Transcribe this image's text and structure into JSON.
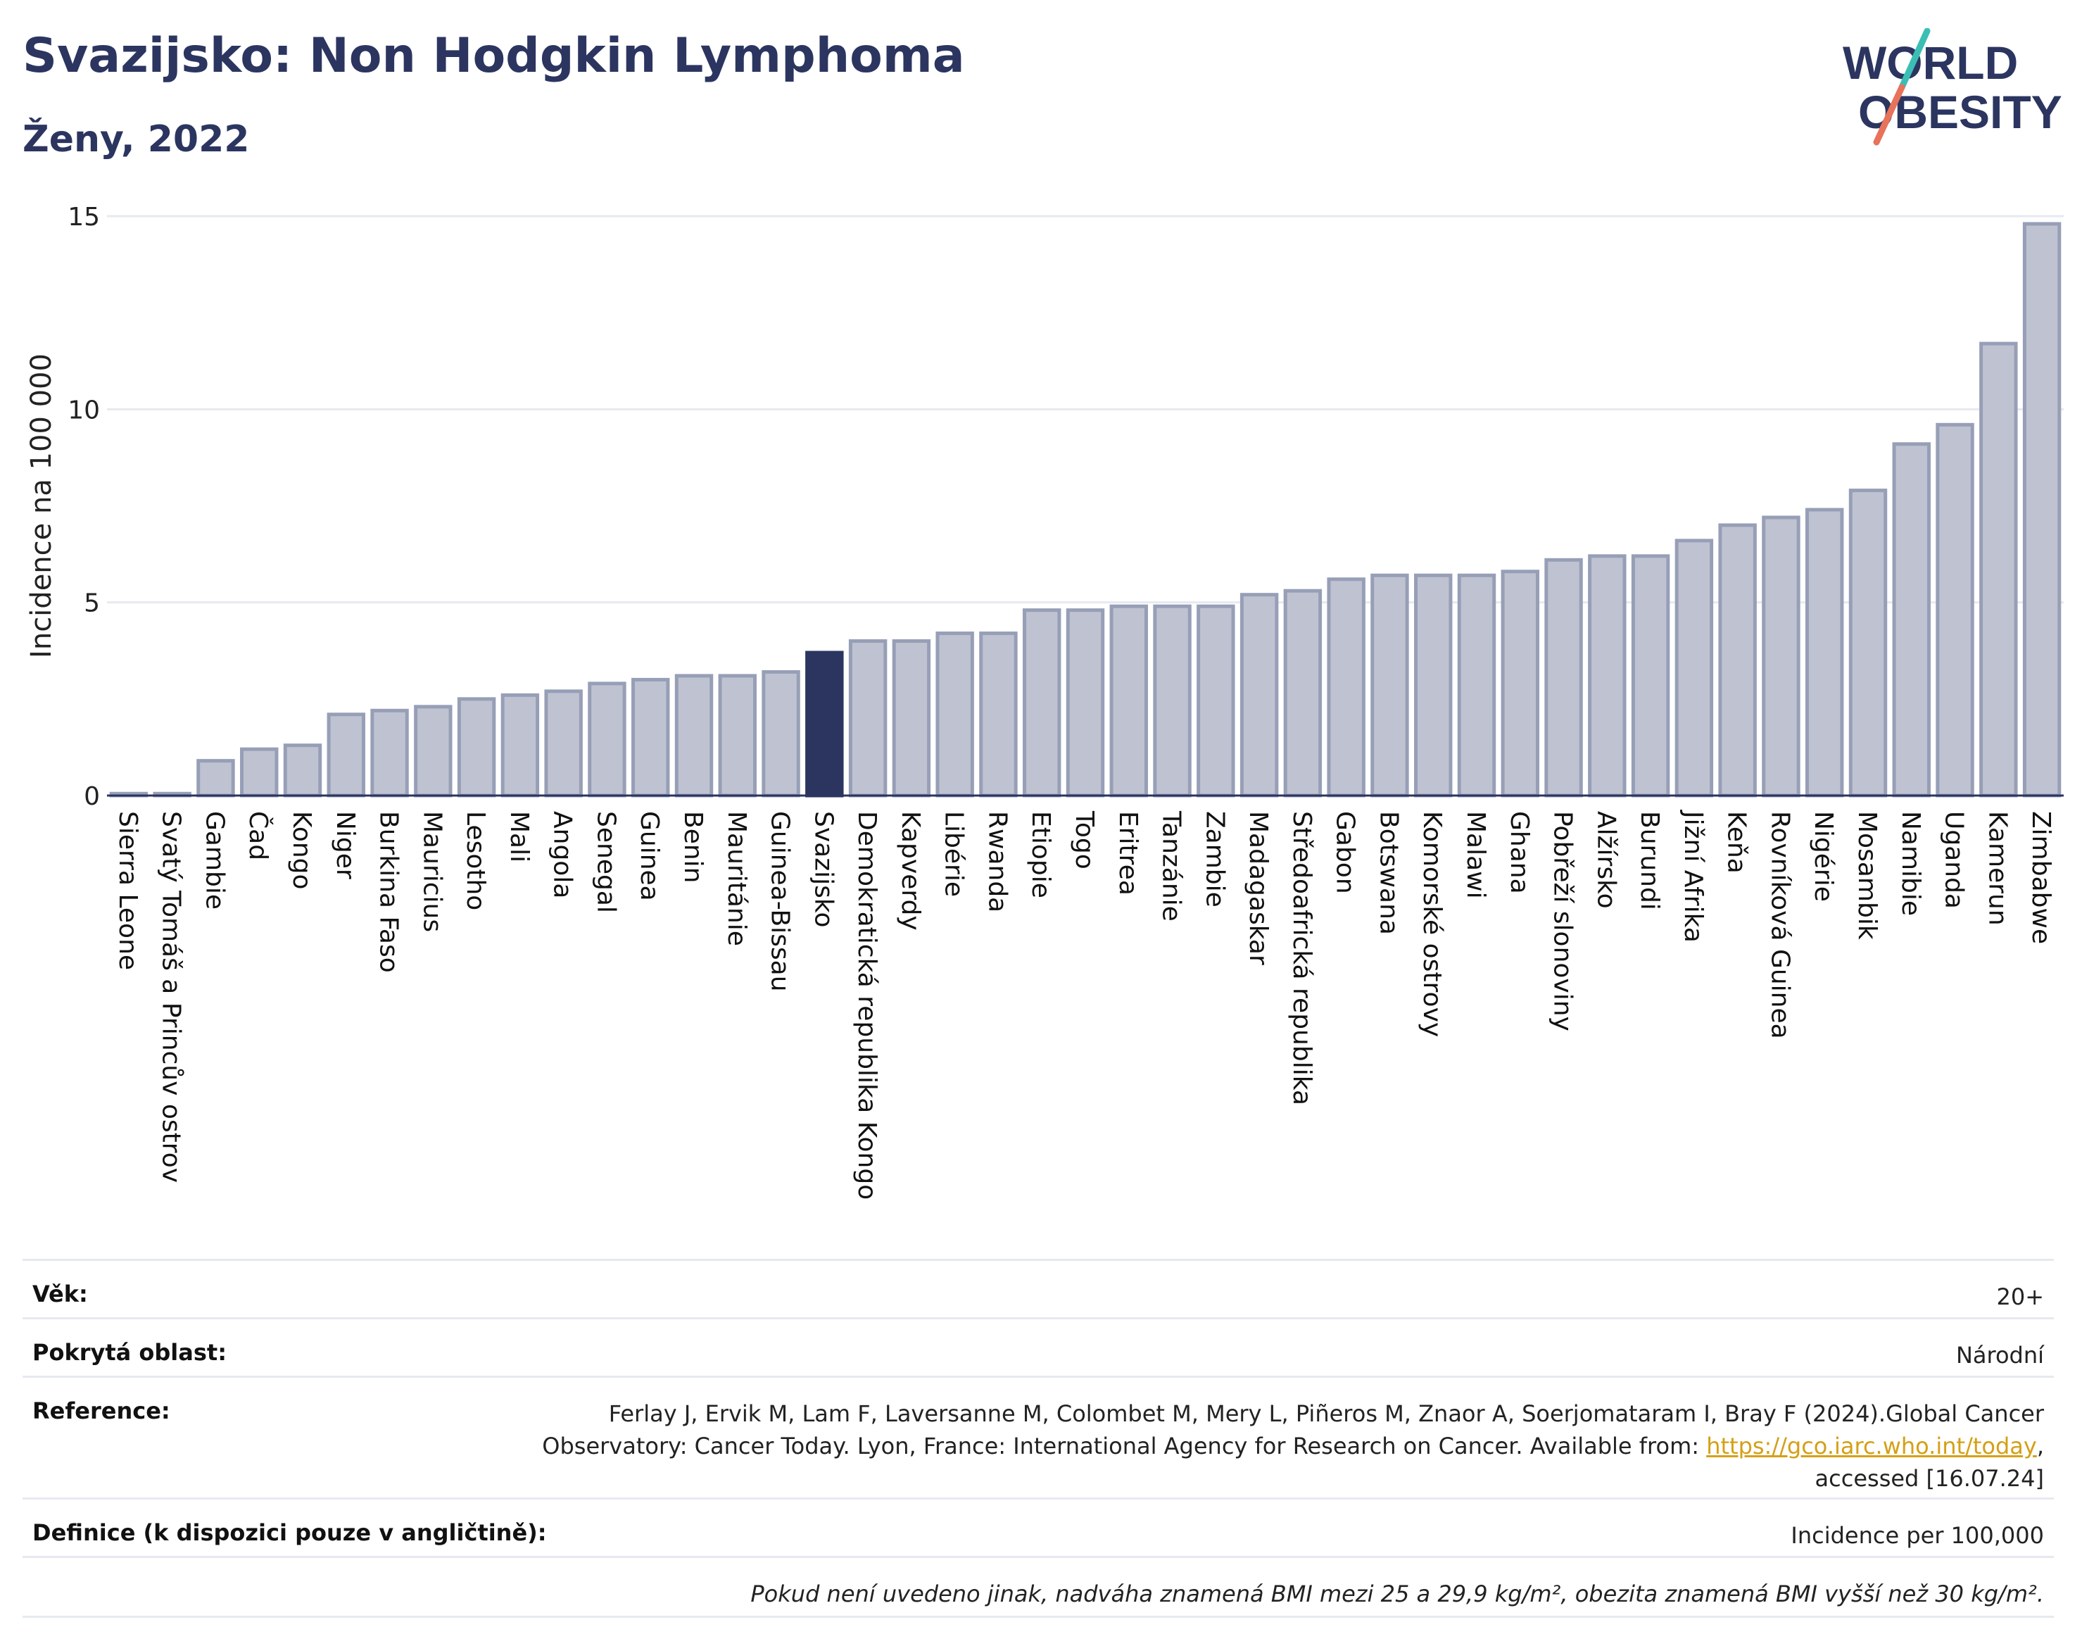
{
  "header": {
    "title": "Svazijsko: Non Hodgkin Lymphoma",
    "subtitle": "Ženy, 2022",
    "logo_line1": "WORLD",
    "logo_line2": "OBESITY"
  },
  "colors": {
    "bar": "#bfc3d1",
    "bar_border": "#979fb7",
    "highlight": "#2b3560",
    "title": "#2b3560",
    "logo_slash_top": "#3bbfb4",
    "logo_slash_bottom": "#e8735a"
  },
  "chart_data": {
    "type": "bar",
    "ylabel": "Incidence na 100 000",
    "ylim": [
      0,
      15
    ],
    "yticks": [
      0,
      5,
      10,
      15
    ],
    "grid": true,
    "highlight": "Svazijsko",
    "categories": [
      "Sierra Leone",
      "Svatý Tomáš a Princův ostrov",
      "Gambie",
      "Čad",
      "Kongo",
      "Niger",
      "Burkina Faso",
      "Mauricius",
      "Lesotho",
      "Mali",
      "Angola",
      "Senegal",
      "Guinea",
      "Benin",
      "Mauritánie",
      "Guinea-Bissau",
      "Svazijsko",
      "Demokratická republika Kongo",
      "Kapverdy",
      "Libérie",
      "Rwanda",
      "Etiopie",
      "Togo",
      "Eritrea",
      "Tanzánie",
      "Zambie",
      "Madagaskar",
      "Středoafrická republika",
      "Gabon",
      "Botswana",
      "Komorské ostrovy",
      "Malawi",
      "Ghana",
      "Pobřeží slonoviny",
      "Alžírsko",
      "Burundi",
      "Jižní Afrika",
      "Keňa",
      "Rovníková Guinea",
      "Nigérie",
      "Mosambik",
      "Namibie",
      "Uganda",
      "Kamerun",
      "Zimbabwe"
    ],
    "values": [
      0.05,
      0.05,
      0.9,
      1.2,
      1.3,
      2.1,
      2.2,
      2.3,
      2.5,
      2.6,
      2.7,
      2.9,
      3.0,
      3.1,
      3.1,
      3.2,
      3.7,
      4.0,
      4.0,
      4.2,
      4.2,
      4.8,
      4.8,
      4.9,
      4.9,
      4.9,
      5.2,
      5.3,
      5.6,
      5.7,
      5.7,
      5.7,
      5.8,
      6.1,
      6.2,
      6.2,
      6.6,
      7.0,
      7.2,
      7.4,
      7.9,
      9.1,
      9.6,
      11.7,
      14.8
    ]
  },
  "info": {
    "age_label": "Věk:",
    "age_value": "20+",
    "area_label": "Pokrytá oblast:",
    "area_value": "Národní",
    "ref_label": "Reference:",
    "ref_text_1": "Ferlay J, Ervik M, Lam F, Laversanne M, Colombet M, Mery L, Piñeros M, Znaor A, Soerjomataram I, Bray F (2024).Global Cancer",
    "ref_text_2": "Observatory: Cancer Today. Lyon, France: International Agency for Research on Cancer. Available from: ",
    "ref_link": "https://gco.iarc.who.int/today",
    "ref_text_3": ",",
    "ref_text_4": "accessed [16.07.24]",
    "def_label": "Definice (k dispozici pouze v angličtině):",
    "def_value": "Incidence per 100,000",
    "note": "Pokud není uvedeno jinak, nadváha znamená BMI mezi 25 a 29,9 kg/m², obezita znamená BMI vyšší než 30 kg/m²."
  }
}
